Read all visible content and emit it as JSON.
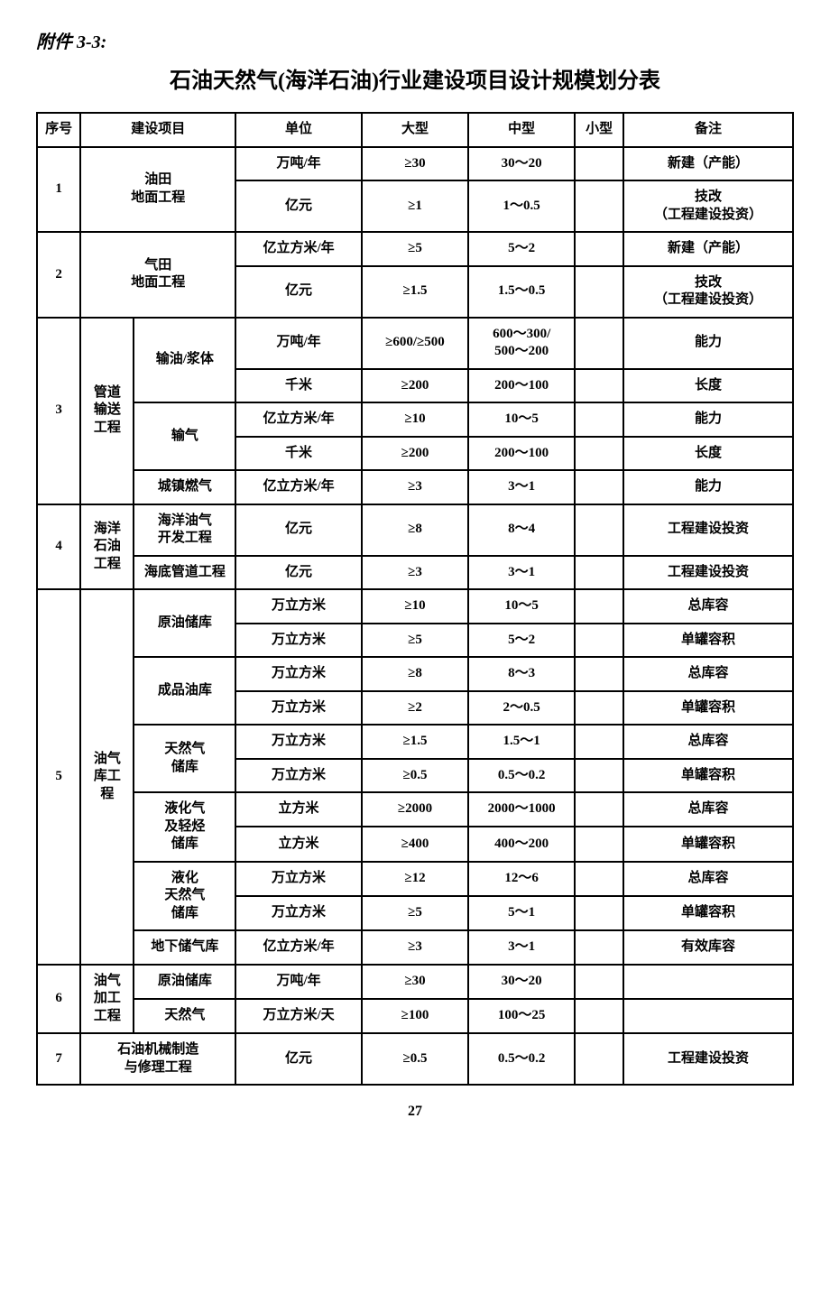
{
  "attachment_label": "附件 3-3:",
  "title": "石油天然气(海洋石油)行业建设项目设计规模划分表",
  "page_number": "27",
  "headers": {
    "index": "序号",
    "project": "建设项目",
    "unit": "单位",
    "large": "大型",
    "medium": "中型",
    "small": "小型",
    "remark": "备注"
  },
  "rows": {
    "r1": {
      "idx": "1",
      "project": "油田\n地面工程"
    },
    "r1a": {
      "unit": "万吨/年",
      "large": "≥30",
      "medium": "30～20",
      "small": "",
      "remark": "新建（产能）"
    },
    "r1b": {
      "unit": "亿元",
      "large": "≥1",
      "medium": "1～0.5",
      "small": "",
      "remark": "技改\n（工程建设投资）"
    },
    "r2": {
      "idx": "2",
      "project": "气田\n地面工程"
    },
    "r2a": {
      "unit": "亿立方米/年",
      "large": "≥5",
      "medium": "5～2",
      "small": "",
      "remark": "新建（产能）"
    },
    "r2b": {
      "unit": "亿元",
      "large": "≥1.5",
      "medium": "1.5～0.5",
      "small": "",
      "remark": "技改\n（工程建设投资）"
    },
    "r3": {
      "idx": "3",
      "cat": "管道\n输送\n工程"
    },
    "r3_oil": {
      "sub": "输油/浆体"
    },
    "r3a": {
      "unit": "万吨/年",
      "large": "≥600/≥500",
      "medium": "600～300/\n500～200",
      "small": "",
      "remark": "能力"
    },
    "r3b": {
      "unit": "千米",
      "large": "≥200",
      "medium": "200～100",
      "small": "",
      "remark": "长度"
    },
    "r3_gas": {
      "sub": "输气"
    },
    "r3c": {
      "unit": "亿立方米/年",
      "large": "≥10",
      "medium": "10～5",
      "small": "",
      "remark": "能力"
    },
    "r3d": {
      "unit": "千米",
      "large": "≥200",
      "medium": "200～100",
      "small": "",
      "remark": "长度"
    },
    "r3_town": {
      "sub": "城镇燃气"
    },
    "r3e": {
      "unit": "亿立方米/年",
      "large": "≥3",
      "medium": "3～1",
      "small": "",
      "remark": "能力"
    },
    "r4": {
      "idx": "4",
      "cat": "海洋\n石油\n工程"
    },
    "r4_dev": {
      "sub": "海洋油气\n开发工程"
    },
    "r4a": {
      "unit": "亿元",
      "large": "≥8",
      "medium": "8～4",
      "small": "",
      "remark": "工程建设投资"
    },
    "r4_pipe": {
      "sub": "海底管道工程"
    },
    "r4b": {
      "unit": "亿元",
      "large": "≥3",
      "medium": "3～1",
      "small": "",
      "remark": "工程建设投资"
    },
    "r5": {
      "idx": "5",
      "cat": "油气\n库工\n程"
    },
    "r5_crude": {
      "sub": "原油储库"
    },
    "r5a": {
      "unit": "万立方米",
      "large": "≥10",
      "medium": "10～5",
      "small": "",
      "remark": "总库容"
    },
    "r5b": {
      "unit": "万立方米",
      "large": "≥5",
      "medium": "5～2",
      "small": "",
      "remark": "单罐容积"
    },
    "r5_prod": {
      "sub": "成品油库"
    },
    "r5c": {
      "unit": "万立方米",
      "large": "≥8",
      "medium": "8～3",
      "small": "",
      "remark": "总库容"
    },
    "r5d": {
      "unit": "万立方米",
      "large": "≥2",
      "medium": "2～0.5",
      "small": "",
      "remark": "单罐容积"
    },
    "r5_ng": {
      "sub": "天然气\n储库"
    },
    "r5e": {
      "unit": "万立方米",
      "large": "≥1.5",
      "medium": "1.5～1",
      "small": "",
      "remark": "总库容"
    },
    "r5f": {
      "unit": "万立方米",
      "large": "≥0.5",
      "medium": "0.5～0.2",
      "small": "",
      "remark": "单罐容积"
    },
    "r5_lpg": {
      "sub": "液化气\n及轻烃\n储库"
    },
    "r5g": {
      "unit": "立方米",
      "large": "≥2000",
      "medium": "2000～1000",
      "small": "",
      "remark": "总库容"
    },
    "r5h": {
      "unit": "立方米",
      "large": "≥400",
      "medium": "400～200",
      "small": "",
      "remark": "单罐容积"
    },
    "r5_lng": {
      "sub": "液化\n天然气\n储库"
    },
    "r5i": {
      "unit": "万立方米",
      "large": "≥12",
      "medium": "12～6",
      "small": "",
      "remark": "总库容"
    },
    "r5j": {
      "unit": "万立方米",
      "large": "≥5",
      "medium": "5～1",
      "small": "",
      "remark": "单罐容积"
    },
    "r5_ug": {
      "sub": "地下储气库"
    },
    "r5k": {
      "unit": "亿立方米/年",
      "large": "≥3",
      "medium": "3～1",
      "small": "",
      "remark": "有效库容"
    },
    "r6": {
      "idx": "6",
      "cat": "油气\n加工\n工程"
    },
    "r6_crude": {
      "sub": "原油储库"
    },
    "r6a": {
      "unit": "万吨/年",
      "large": "≥30",
      "medium": "30～20",
      "small": "",
      "remark": ""
    },
    "r6_ng": {
      "sub": "天然气"
    },
    "r6b": {
      "unit": "万立方米/天",
      "large": "≥100",
      "medium": "100～25",
      "small": "",
      "remark": ""
    },
    "r7": {
      "idx": "7",
      "project": "石油机械制造\n与修理工程"
    },
    "r7a": {
      "unit": "亿元",
      "large": "≥0.5",
      "medium": "0.5～0.2",
      "small": "",
      "remark": "工程建设投资"
    }
  }
}
